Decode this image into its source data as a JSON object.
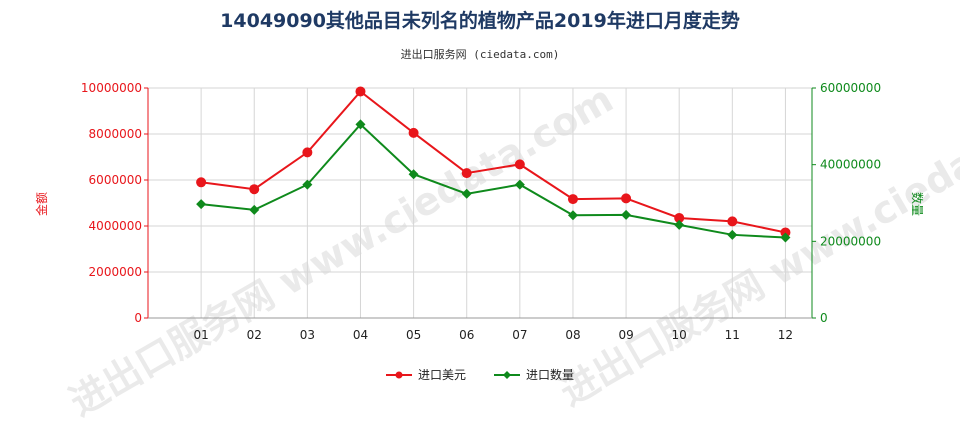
{
  "title": "14049090其他品目未列名的植物产品2019年进口月度走势",
  "subtitle": "进出口服务网 (ciedata.com)",
  "watermark": "进出口服务网 www.ciedata.com",
  "colors": {
    "usd": "#e8161b",
    "qty": "#0f8a1c",
    "title": "#1f3a64"
  },
  "chart_data": {
    "type": "line",
    "categories": [
      "01",
      "02",
      "03",
      "04",
      "05",
      "06",
      "07",
      "08",
      "09",
      "10",
      "11",
      "12"
    ],
    "y_left": {
      "label": "金额",
      "ylim": [
        0,
        10000000
      ],
      "ticks": [
        "0",
        "2000000",
        "4000000",
        "6000000",
        "8000000",
        "10000000"
      ]
    },
    "y_right": {
      "label": "数量",
      "ylim": [
        0,
        60000000
      ],
      "ticks": [
        "0",
        "20000000",
        "40000000",
        "60000000"
      ]
    },
    "series": [
      {
        "name": "进口美元",
        "axis": "left",
        "color": "#e8161b",
        "marker": "circle",
        "values": [
          5900000,
          5600000,
          7200000,
          9850000,
          8050000,
          6300000,
          6680000,
          5170000,
          5200000,
          4350000,
          4200000,
          3720000
        ]
      },
      {
        "name": "进口数量",
        "axis": "right",
        "color": "#0f8a1c",
        "marker": "diamond",
        "values": [
          29700000,
          28200000,
          34800000,
          50500000,
          37500000,
          32400000,
          34800000,
          26800000,
          26900000,
          24300000,
          21700000,
          21000000
        ]
      }
    ],
    "grid": true,
    "legend": "bottom-center"
  }
}
